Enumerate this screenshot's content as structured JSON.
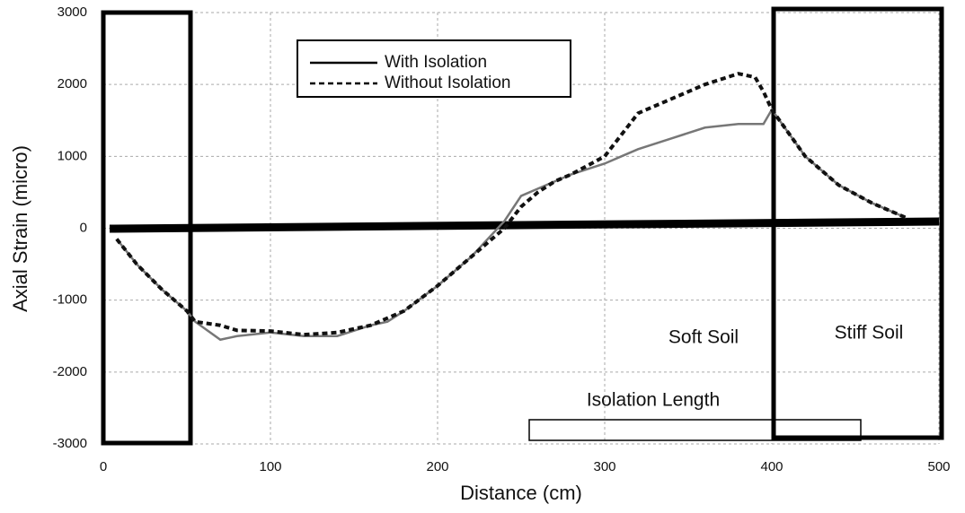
{
  "chart_data": {
    "type": "line",
    "xlabel": "Distance (cm)",
    "ylabel": "Axial Strain (micro)",
    "x": [
      8,
      20,
      35,
      50,
      55,
      70,
      80,
      100,
      120,
      140,
      160,
      170,
      180,
      200,
      220,
      240,
      250,
      260,
      270,
      280,
      300,
      310,
      320,
      340,
      360,
      380,
      390,
      395,
      400,
      420,
      440,
      460,
      480
    ],
    "series": [
      {
        "name": "With Isolation",
        "color": "#777777",
        "style": "solid",
        "values": [
          -150,
          -500,
          -850,
          -1150,
          -1300,
          -1550,
          -1500,
          -1450,
          -1500,
          -1500,
          -1350,
          -1300,
          -1150,
          -800,
          -400,
          100,
          450,
          550,
          650,
          750,
          900,
          1000,
          1100,
          1250,
          1400,
          1450,
          1450,
          1450,
          1650,
          1000,
          600,
          350,
          150
        ]
      },
      {
        "name": "Without Isolation",
        "color": "#111111",
        "style": "dashed",
        "values": [
          -150,
          -500,
          -850,
          -1150,
          -1300,
          -1350,
          -1420,
          -1430,
          -1480,
          -1450,
          -1350,
          -1250,
          -1150,
          -800,
          -400,
          0,
          300,
          500,
          650,
          750,
          1000,
          1300,
          1600,
          1800,
          2000,
          2150,
          2100,
          1900,
          1650,
          1000,
          600,
          350,
          150
        ]
      }
    ],
    "xlim": [
      0,
      500
    ],
    "xticks": [
      0,
      100,
      200,
      300,
      400,
      500
    ],
    "ylim": [
      -3000,
      3000
    ],
    "yticks": [
      -3000,
      -2000,
      -1000,
      0,
      1000,
      2000,
      3000
    ],
    "grid": true,
    "annotations": [
      "Soft Soil",
      "Stiff Soil",
      "Isolation Length"
    ]
  }
}
